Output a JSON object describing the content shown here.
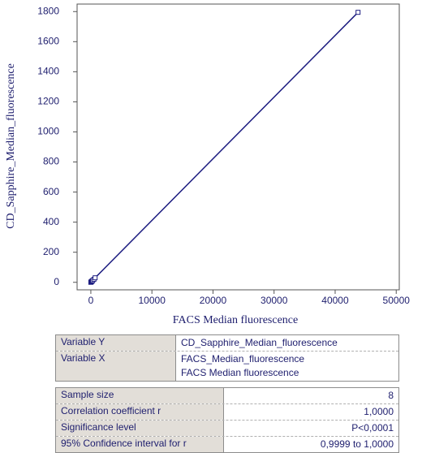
{
  "chart_data": {
    "type": "scatter",
    "connect": true,
    "xlabel": "FACS Median fluorescence",
    "ylabel": "CD_Sapphire_Median_fluorescence",
    "x": [
      0,
      50,
      100,
      200,
      300,
      500,
      700,
      43750
    ],
    "series": [
      {
        "name": "CD_Sapphire_Median_fluorescence",
        "color": "#1c1c80",
        "values": [
          0,
          2,
          5,
          8,
          12,
          20,
          30,
          1795
        ]
      }
    ],
    "xlim": [
      -2250,
      50500
    ],
    "xticks": [
      0,
      10000,
      20000,
      30000,
      40000,
      50000
    ],
    "ylim": [
      -50,
      1850
    ],
    "yticks": [
      0,
      200,
      400,
      600,
      800,
      1000,
      1200,
      1400,
      1600,
      1800
    ]
  },
  "tables": [
    {
      "rows": [
        {
          "label": "Variable Y",
          "values": [
            "CD_Sapphire_Median_fluorescence"
          ]
        },
        {
          "label": "Variable X",
          "values": [
            "FACS_Median_fluorescence",
            "FACS Median fluorescence"
          ]
        }
      ]
    },
    {
      "rows": [
        {
          "label": "Sample size",
          "values": [
            8
          ]
        },
        {
          "label": "Correlation coefficient r",
          "values": [
            "1,0000"
          ]
        },
        {
          "label": "Significance level",
          "values": [
            "P<0,0001"
          ]
        },
        {
          "label": "95% Confidence interval for r",
          "values": [
            "0,9999 to 1,0000"
          ]
        }
      ]
    }
  ]
}
